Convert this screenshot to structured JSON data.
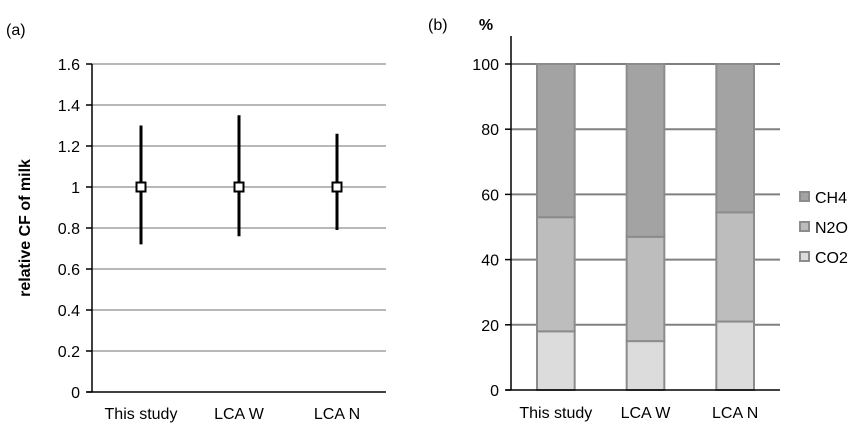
{
  "chart_data": [
    {
      "panel_label": "(a)",
      "type": "scatter",
      "error_bars": true,
      "ylabel": "relative CF of milk",
      "categories": [
        "This study",
        "LCA W",
        "LCA N"
      ],
      "values": [
        1,
        1,
        1
      ],
      "err_low": [
        0.72,
        0.76,
        0.79
      ],
      "err_high": [
        1.3,
        1.35,
        1.26
      ],
      "ylim": [
        0,
        1.6
      ],
      "yticks": [
        "0",
        "0.2",
        "0.4",
        "0.6",
        "0.8",
        "1",
        "1.2",
        "1.4",
        "1.6"
      ],
      "grid": true,
      "colors": {
        "grid": "#b8b8b8",
        "marker": "#000000",
        "marker_fill": "#ffffff"
      }
    },
    {
      "panel_label": "(b)",
      "type": "bar",
      "stacked": true,
      "ylabel": "%",
      "categories": [
        "This study",
        "LCA W",
        "LCA N"
      ],
      "series": [
        {
          "name": "CO2",
          "values": [
            18,
            15,
            21
          ],
          "color": "#dcdcdc"
        },
        {
          "name": "N2O",
          "values": [
            35,
            32,
            33.5
          ],
          "color": "#bdbdbd"
        },
        {
          "name": "CH4",
          "values": [
            47,
            53,
            45.5
          ],
          "color": "#a3a3a3"
        }
      ],
      "legend_order": [
        "CH4",
        "N2O",
        "CO2"
      ],
      "legend_position": "right",
      "ylim": [
        0,
        100
      ],
      "yticks": [
        "0",
        "20",
        "40",
        "60",
        "80",
        "100"
      ],
      "grid": true,
      "colors": {
        "grid": "#808080",
        "bar_edge": "#8c8c8c"
      }
    }
  ]
}
